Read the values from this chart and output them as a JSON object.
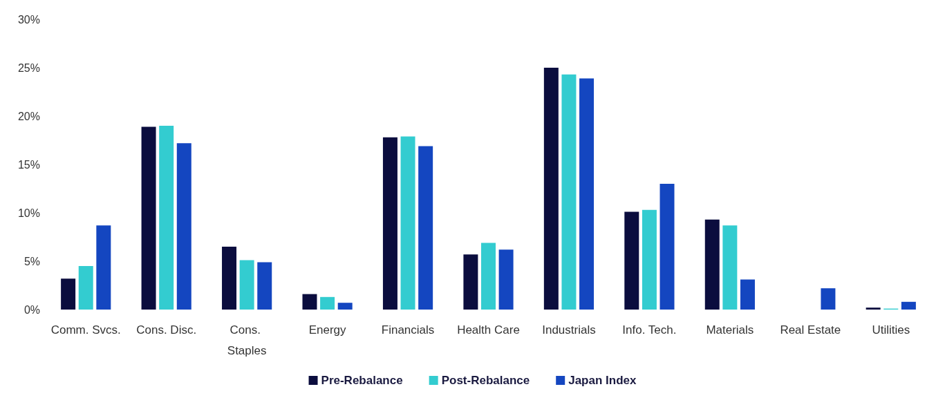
{
  "chart_data": {
    "type": "bar",
    "categories": [
      "Comm. Svcs.",
      "Cons. Disc.",
      "Cons. Staples",
      "Energy",
      "Financials",
      "Health Care",
      "Industrials",
      "Info. Tech.",
      "Materials",
      "Real Estate",
      "Utilities"
    ],
    "series": [
      {
        "name": "Pre-Rebalance",
        "color": "#0b0d3e",
        "values": [
          3.2,
          18.9,
          6.5,
          1.6,
          17.8,
          5.7,
          25.0,
          10.1,
          9.3,
          null,
          0.2
        ]
      },
      {
        "name": "Post-Rebalance",
        "color": "#33ccd0",
        "values": [
          4.5,
          19.0,
          5.1,
          1.3,
          17.9,
          6.9,
          24.3,
          10.3,
          8.7,
          null,
          0.1
        ]
      },
      {
        "name": "Japan Index",
        "color": "#1446c0",
        "values": [
          8.7,
          17.2,
          4.9,
          0.7,
          16.9,
          6.2,
          23.9,
          13.0,
          3.1,
          2.2,
          0.8
        ]
      }
    ],
    "ylim": [
      0,
      30
    ],
    "yticks": [
      {
        "value": 0,
        "label": "0%"
      },
      {
        "value": 5,
        "label": "5%"
      },
      {
        "value": 10,
        "label": "10%"
      },
      {
        "value": 15,
        "label": "15%"
      },
      {
        "value": 20,
        "label": "20%"
      },
      {
        "value": 25,
        "label": "25%"
      },
      {
        "value": 30,
        "label": "30%"
      }
    ],
    "grid": false,
    "legend": "bottom"
  }
}
